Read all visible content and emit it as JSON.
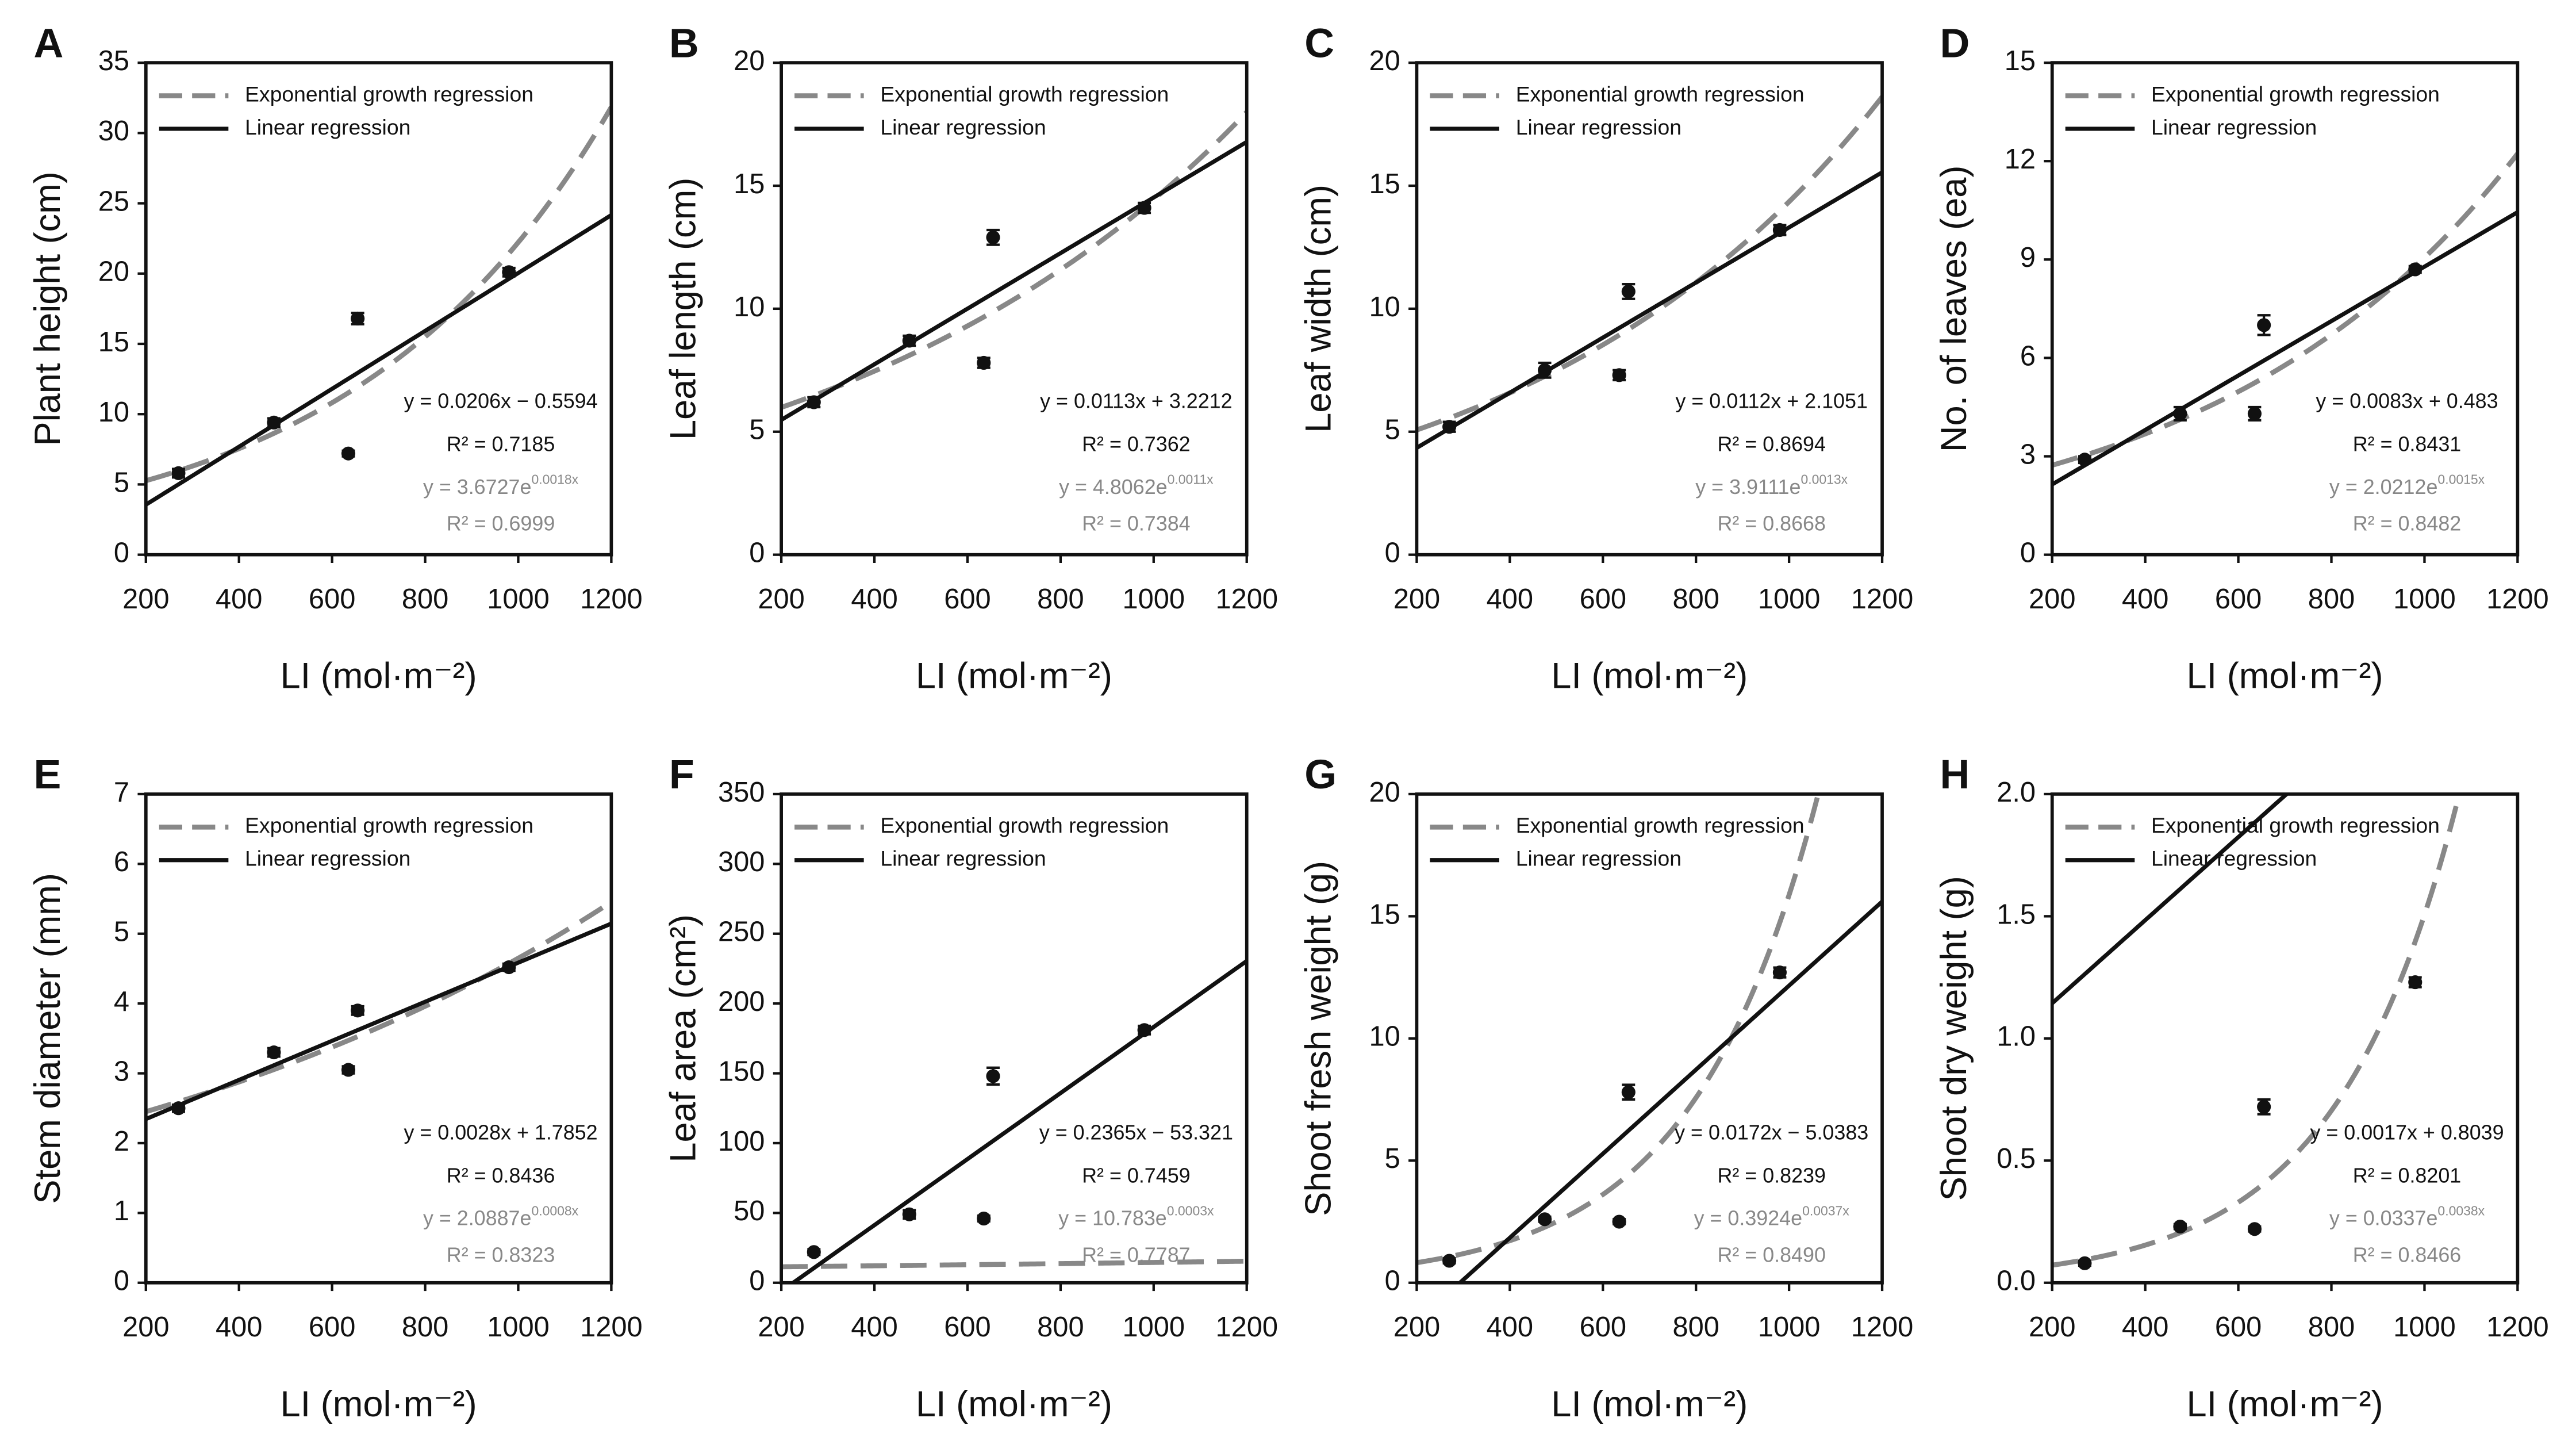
{
  "chart_data": [
    {
      "type": "scatter",
      "letter": "A",
      "y_label": "Plant height (cm)",
      "x_label": "LI (mol·m⁻²)",
      "xlim": [
        200,
        1200
      ],
      "xticks": [
        200,
        400,
        600,
        800,
        1000,
        1200
      ],
      "ylim": [
        0,
        35
      ],
      "yticks": [
        0,
        5,
        10,
        15,
        20,
        25,
        30,
        35
      ],
      "x": [
        270,
        475,
        635,
        655,
        980
      ],
      "values": [
        5.8,
        9.4,
        7.2,
        16.8,
        20.1
      ],
      "errors": [
        0.3,
        0.3,
        0.2,
        0.4,
        0.3
      ],
      "color": "#111111",
      "fits": [
        {
          "name": "Exponential growth regression",
          "kind": "exp",
          "color": "#888888",
          "a": 3.6727,
          "b": 0.0018,
          "equation": "y = 3.6727e",
          "exponent": "0.0018x",
          "r2": "R² = 0.6999"
        },
        {
          "name": "Linear regression",
          "kind": "linear",
          "color": "#111111",
          "slope": 0.0206,
          "intercept": -0.5594,
          "equation": "y = 0.0206x − 0.5594",
          "r2": "R² = 0.7185"
        }
      ]
    },
    {
      "type": "scatter",
      "letter": "B",
      "y_label": "Leaf length (cm)",
      "x_label": "LI (mol·m⁻²)",
      "xlim": [
        200,
        1200
      ],
      "xticks": [
        200,
        400,
        600,
        800,
        1000,
        1200
      ],
      "ylim": [
        0,
        20
      ],
      "yticks": [
        0,
        5,
        10,
        15,
        20
      ],
      "x": [
        270,
        475,
        635,
        655,
        980
      ],
      "values": [
        6.2,
        8.7,
        7.8,
        12.9,
        14.1
      ],
      "errors": [
        0.2,
        0.2,
        0.2,
        0.3,
        0.2
      ],
      "color": "#111111",
      "fits": [
        {
          "name": "Exponential growth regression",
          "kind": "exp",
          "color": "#888888",
          "a": 4.8062,
          "b": 0.0011,
          "equation": "y = 4.8062e",
          "exponent": "0.0011x",
          "r2": "R² = 0.7384"
        },
        {
          "name": "Linear regression",
          "kind": "linear",
          "color": "#111111",
          "slope": 0.0113,
          "intercept": 3.2212,
          "equation": "y = 0.0113x + 3.2212",
          "r2": "R² = 0.7362"
        }
      ]
    },
    {
      "type": "scatter",
      "letter": "C",
      "y_label": "Leaf width (cm)",
      "x_label": "LI (mol·m⁻²)",
      "xlim": [
        200,
        1200
      ],
      "xticks": [
        200,
        400,
        600,
        800,
        1000,
        1200
      ],
      "ylim": [
        0,
        20
      ],
      "yticks": [
        0,
        5,
        10,
        15,
        20
      ],
      "x": [
        270,
        475,
        635,
        655,
        980
      ],
      "values": [
        5.2,
        7.5,
        7.3,
        10.7,
        13.2
      ],
      "errors": [
        0.2,
        0.3,
        0.2,
        0.3,
        0.2
      ],
      "color": "#111111",
      "fits": [
        {
          "name": "Exponential growth regression",
          "kind": "exp",
          "color": "#888888",
          "a": 3.9111,
          "b": 0.0013,
          "equation": "y = 3.9111e",
          "exponent": "0.0013x",
          "r2": "R² = 0.8668"
        },
        {
          "name": "Linear regression",
          "kind": "linear",
          "color": "#111111",
          "slope": 0.0112,
          "intercept": 2.1051,
          "equation": "y = 0.0112x + 2.1051",
          "r2": "R² = 0.8694"
        }
      ]
    },
    {
      "type": "scatter",
      "letter": "D",
      "y_label": "No. of leaves (ea)",
      "x_label": "LI (mol·m⁻²)",
      "xlim": [
        200,
        1200
      ],
      "xticks": [
        200,
        400,
        600,
        800,
        1000,
        1200
      ],
      "ylim": [
        0,
        15
      ],
      "yticks": [
        0,
        3,
        6,
        9,
        12,
        15
      ],
      "x": [
        270,
        475,
        635,
        655,
        980
      ],
      "values": [
        2.9,
        4.3,
        4.3,
        7.0,
        8.7
      ],
      "errors": [
        0.1,
        0.2,
        0.2,
        0.3,
        0.1
      ],
      "color": "#111111",
      "fits": [
        {
          "name": "Exponential growth regression",
          "kind": "exp",
          "color": "#888888",
          "a": 2.0212,
          "b": 0.0015,
          "equation": "y = 2.0212e",
          "exponent": "0.0015x",
          "r2": "R² = 0.8482"
        },
        {
          "name": "Linear regression",
          "kind": "linear",
          "color": "#111111",
          "slope": 0.0083,
          "intercept": 0.483,
          "equation": "y = 0.0083x + 0.483",
          "r2": "R² = 0.8431"
        }
      ]
    },
    {
      "type": "scatter",
      "letter": "E",
      "y_label": "Stem diameter (mm)",
      "x_label": "LI (mol·m⁻²)",
      "xlim": [
        200,
        1200
      ],
      "xticks": [
        200,
        400,
        600,
        800,
        1000,
        1200
      ],
      "ylim": [
        0,
        7
      ],
      "yticks": [
        0,
        1,
        2,
        3,
        4,
        5,
        6,
        7
      ],
      "x": [
        270,
        475,
        635,
        655,
        980
      ],
      "values": [
        2.5,
        3.3,
        3.05,
        3.9,
        4.52
      ],
      "errors": [
        0.05,
        0.06,
        0.05,
        0.06,
        0.05
      ],
      "color": "#111111",
      "fits": [
        {
          "name": "Exponential growth regression",
          "kind": "exp",
          "color": "#888888",
          "a": 2.0887,
          "b": 0.0008,
          "equation": "y = 2.0887e",
          "exponent": "0.0008x",
          "r2": "R² = 0.8323"
        },
        {
          "name": "Linear regression",
          "kind": "linear",
          "color": "#111111",
          "slope": 0.0028,
          "intercept": 1.7852,
          "equation": "y = 0.0028x + 1.7852",
          "r2": "R² = 0.8436"
        }
      ]
    },
    {
      "type": "scatter",
      "letter": "F",
      "y_label": "Leaf area (cm²)",
      "x_label": "LI (mol·m⁻²)",
      "xlim": [
        200,
        1200
      ],
      "xticks": [
        200,
        400,
        600,
        800,
        1000,
        1200
      ],
      "ylim": [
        0,
        350
      ],
      "yticks": [
        0,
        50,
        100,
        150,
        200,
        250,
        300,
        350
      ],
      "x": [
        270,
        475,
        635,
        655,
        980
      ],
      "values": [
        22,
        49,
        46,
        148,
        181
      ],
      "errors": [
        2,
        3,
        2,
        6,
        3
      ],
      "color": "#111111",
      "fits": [
        {
          "name": "Exponential growth regression",
          "kind": "exp",
          "color": "#888888",
          "a": 10.783,
          "b": 0.0003,
          "equation": "y = 10.783e",
          "exponent": "0.0003x",
          "r2": "R² = 0.7787"
        },
        {
          "name": "Linear regression",
          "kind": "linear",
          "color": "#111111",
          "slope": 0.2365,
          "intercept": -53.321,
          "equation": "y = 0.2365x − 53.321",
          "r2": "R² = 0.7459"
        }
      ]
    },
    {
      "type": "scatter",
      "letter": "G",
      "y_label": "Shoot fresh weight (g)",
      "x_label": "LI (mol·m⁻²)",
      "xlim": [
        200,
        1200
      ],
      "xticks": [
        200,
        400,
        600,
        800,
        1000,
        1200
      ],
      "ylim": [
        0,
        20
      ],
      "yticks": [
        0,
        5,
        10,
        15,
        20
      ],
      "x": [
        270,
        475,
        635,
        655,
        980
      ],
      "values": [
        0.9,
        2.6,
        2.5,
        7.8,
        12.7
      ],
      "errors": [
        0.1,
        0.1,
        0.1,
        0.3,
        0.2
      ],
      "color": "#111111",
      "fits": [
        {
          "name": "Exponential growth regression",
          "kind": "exp",
          "color": "#888888",
          "a": 0.3924,
          "b": 0.0037,
          "equation": "y = 0.3924e",
          "exponent": "0.0037x",
          "r2": "R² = 0.8490"
        },
        {
          "name": "Linear regression",
          "kind": "linear",
          "color": "#111111",
          "slope": 0.0172,
          "intercept": -5.0383,
          "equation": "y = 0.0172x − 5.0383",
          "r2": "R² = 0.8239"
        }
      ]
    },
    {
      "type": "scatter",
      "letter": "H",
      "y_label": "Shoot dry weight (g)",
      "x_label": "LI (mol·m⁻²)",
      "xlim": [
        200,
        1200
      ],
      "xticks": [
        200,
        400,
        600,
        800,
        1000,
        1200
      ],
      "ylim": [
        0,
        2
      ],
      "yticks": [
        {
          "value": 0,
          "label": "0.0"
        },
        {
          "value": 0.5,
          "label": "0.5"
        },
        {
          "value": 1,
          "label": "1.0"
        },
        {
          "value": 1.5,
          "label": "1.5"
        },
        {
          "value": 2,
          "label": "2.0"
        }
      ],
      "x": [
        270,
        475,
        635,
        655,
        980
      ],
      "values": [
        0.08,
        0.23,
        0.22,
        0.72,
        1.23
      ],
      "errors": [
        0.01,
        0.01,
        0.01,
        0.03,
        0.02
      ],
      "color": "#111111",
      "fits": [
        {
          "name": "Exponential growth regression",
          "kind": "exp",
          "color": "#888888",
          "a": 0.0337,
          "b": 0.0038,
          "equation": "y = 0.0337e",
          "exponent": "0.0038x",
          "r2": "R² = 0.8466"
        },
        {
          "name": "Linear regression",
          "kind": "linear",
          "color": "#111111",
          "slope": 0.0017,
          "intercept": 0.8039,
          "equation": "y = 0.0017x + 0.8039",
          "r2": "R² = 0.8201"
        }
      ]
    }
  ]
}
